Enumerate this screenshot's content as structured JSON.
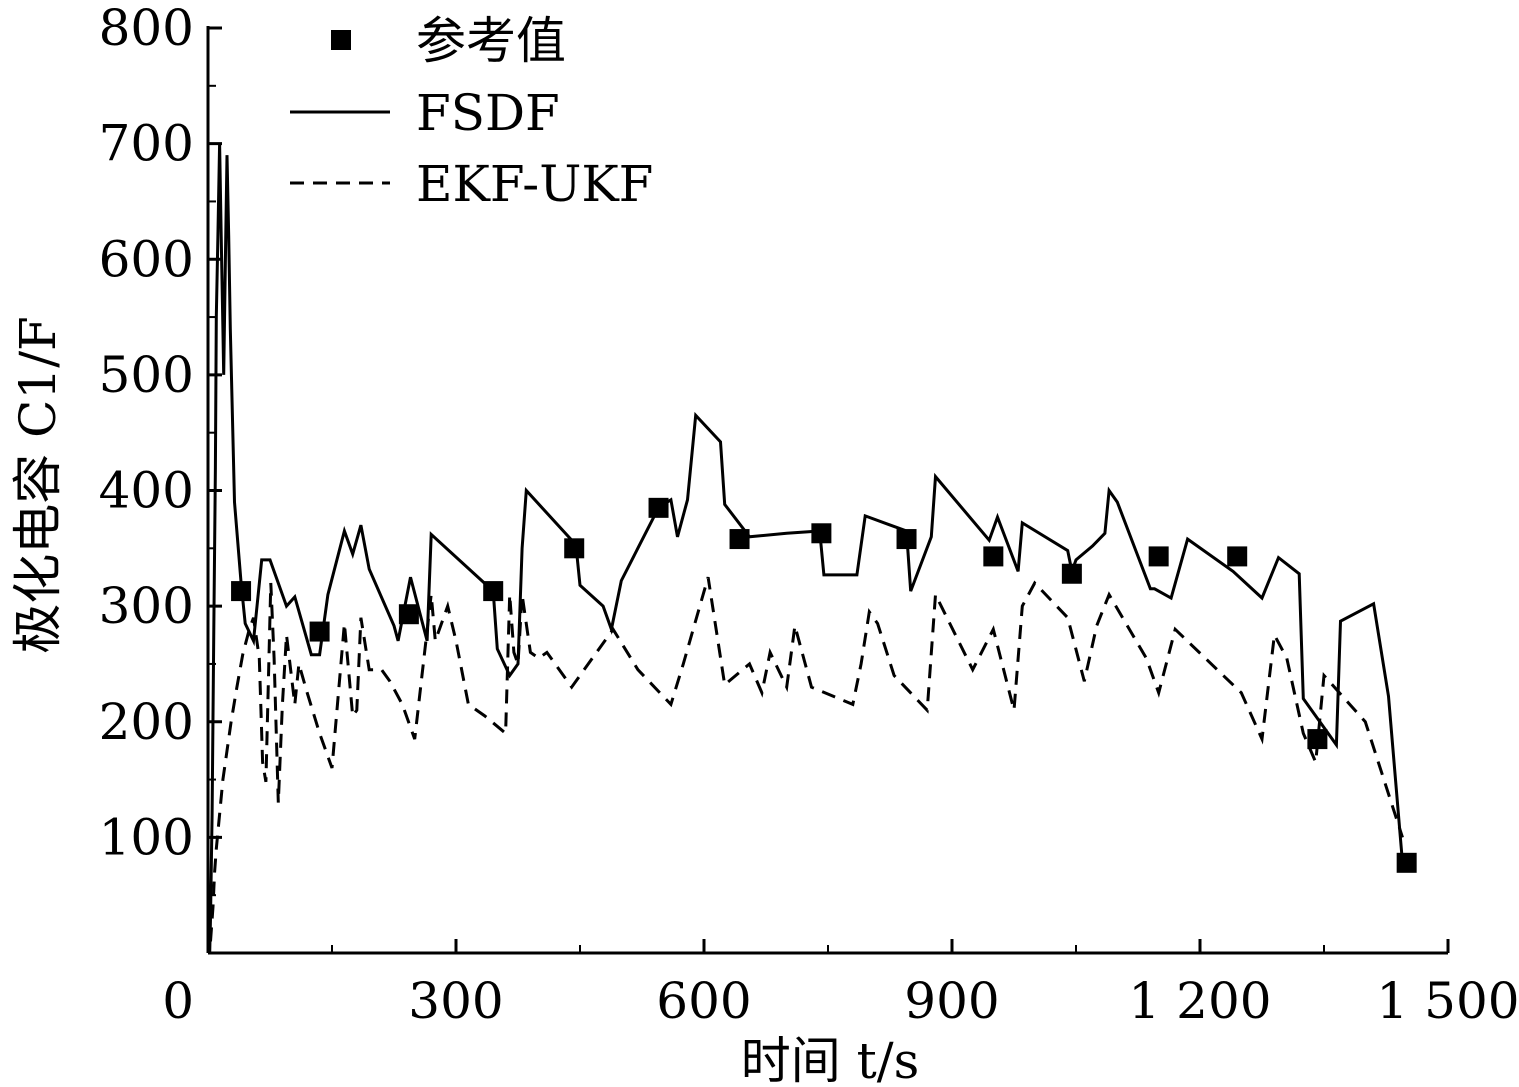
{
  "chart_data": {
    "type": "line",
    "title": "",
    "xlabel": "时间 t/s",
    "ylabel": "极化电容 C1/F",
    "xlim": [
      0,
      1500
    ],
    "ylim": [
      0,
      800
    ],
    "xticks": [
      0,
      300,
      600,
      900,
      1200,
      1500
    ],
    "xtick_labels": [
      "0",
      "300",
      "600",
      "900",
      "1 200",
      "1 500"
    ],
    "yticks": [
      100,
      200,
      300,
      400,
      500,
      600,
      700,
      800
    ],
    "ytick_labels": [
      "100",
      "200",
      "300",
      "400",
      "500",
      "600",
      "700",
      "800"
    ],
    "legend_position": "top-left",
    "series": [
      {
        "name": "参考值",
        "style": "square-markers",
        "color": "#000000",
        "x": [
          40,
          135,
          243,
          345,
          443,
          545,
          643,
          742,
          845,
          950,
          1045,
          1150,
          1245,
          1342,
          1450
        ],
        "y": [
          313,
          278,
          293,
          313,
          350,
          385,
          358,
          363,
          358,
          343,
          328,
          343,
          343,
          185,
          78
        ]
      },
      {
        "name": "FSDF",
        "style": "solid",
        "color": "#000000",
        "x": [
          2,
          3,
          5,
          7,
          9,
          10,
          12,
          14,
          16,
          18,
          19,
          21,
          23,
          25,
          27,
          32,
          40,
          45,
          55,
          65,
          75,
          95,
          105,
          125,
          135,
          145,
          165,
          175,
          185,
          195,
          225,
          230,
          245,
          265,
          270,
          345,
          350,
          365,
          375,
          380,
          385,
          445,
          450,
          478,
          488,
          500,
          545,
          560,
          568,
          580,
          590,
          620,
          625,
          655,
          700,
          740,
          745,
          785,
          795,
          845,
          850,
          875,
          880,
          945,
          955,
          980,
          985,
          1040,
          1045,
          1050,
          1070,
          1085,
          1090,
          1100,
          1140,
          1145,
          1165,
          1185,
          1240,
          1275,
          1295,
          1320,
          1325,
          1365,
          1370,
          1410,
          1428,
          1445
        ],
        "y": [
          0,
          30,
          120,
          280,
          420,
          550,
          620,
          700,
          620,
          540,
          500,
          600,
          690,
          620,
          540,
          390,
          320,
          285,
          270,
          340,
          340,
          300,
          308,
          258,
          258,
          310,
          365,
          345,
          370,
          332,
          283,
          270,
          325,
          270,
          362,
          313,
          263,
          240,
          250,
          350,
          400,
          353,
          318,
          300,
          280,
          322,
          385,
          392,
          360,
          392,
          465,
          442,
          388,
          360,
          363,
          365,
          327,
          327,
          378,
          365,
          313,
          360,
          412,
          357,
          377,
          330,
          372,
          348,
          330,
          340,
          352,
          363,
          400,
          390,
          315,
          315,
          307,
          358,
          330,
          307,
          342,
          328,
          220,
          180,
          287,
          302,
          222,
          78
        ]
      },
      {
        "name": "EKF-UKF",
        "style": "dashed",
        "color": "#000000",
        "x": [
          3,
          6,
          8,
          10,
          14,
          18,
          22,
          28,
          35,
          42,
          50,
          55,
          62,
          66,
          70,
          76,
          80,
          85,
          90,
          95,
          105,
          110,
          120,
          135,
          150,
          165,
          175,
          180,
          185,
          195,
          210,
          220,
          235,
          250,
          270,
          275,
          290,
          300,
          315,
          335,
          360,
          365,
          370,
          375,
          380,
          390,
          400,
          410,
          440,
          470,
          490,
          520,
          560,
          575,
          605,
          625,
          655,
          670,
          680,
          700,
          710,
          730,
          780,
          790,
          800,
          810,
          830,
          870,
          880,
          925,
          950,
          975,
          985,
          1000,
          1040,
          1060,
          1075,
          1090,
          1135,
          1150,
          1170,
          1250,
          1275,
          1290,
          1305,
          1325,
          1340,
          1350,
          1400,
          1445
        ],
        "y": [
          10,
          40,
          70,
          90,
          120,
          150,
          170,
          200,
          230,
          258,
          280,
          290,
          255,
          165,
          148,
          320,
          255,
          130,
          215,
          275,
          215,
          250,
          225,
          190,
          160,
          285,
          205,
          210,
          290,
          245,
          245,
          235,
          215,
          185,
          310,
          270,
          300,
          270,
          215,
          205,
          190,
          310,
          260,
          250,
          310,
          260,
          255,
          260,
          230,
          260,
          280,
          245,
          215,
          250,
          325,
          232,
          250,
          225,
          260,
          230,
          283,
          230,
          215,
          250,
          295,
          285,
          240,
          210,
          310,
          245,
          280,
          210,
          300,
          320,
          290,
          235,
          283,
          310,
          255,
          225,
          280,
          225,
          185,
          275,
          255,
          190,
          165,
          240,
          200,
          100
        ]
      }
    ]
  }
}
